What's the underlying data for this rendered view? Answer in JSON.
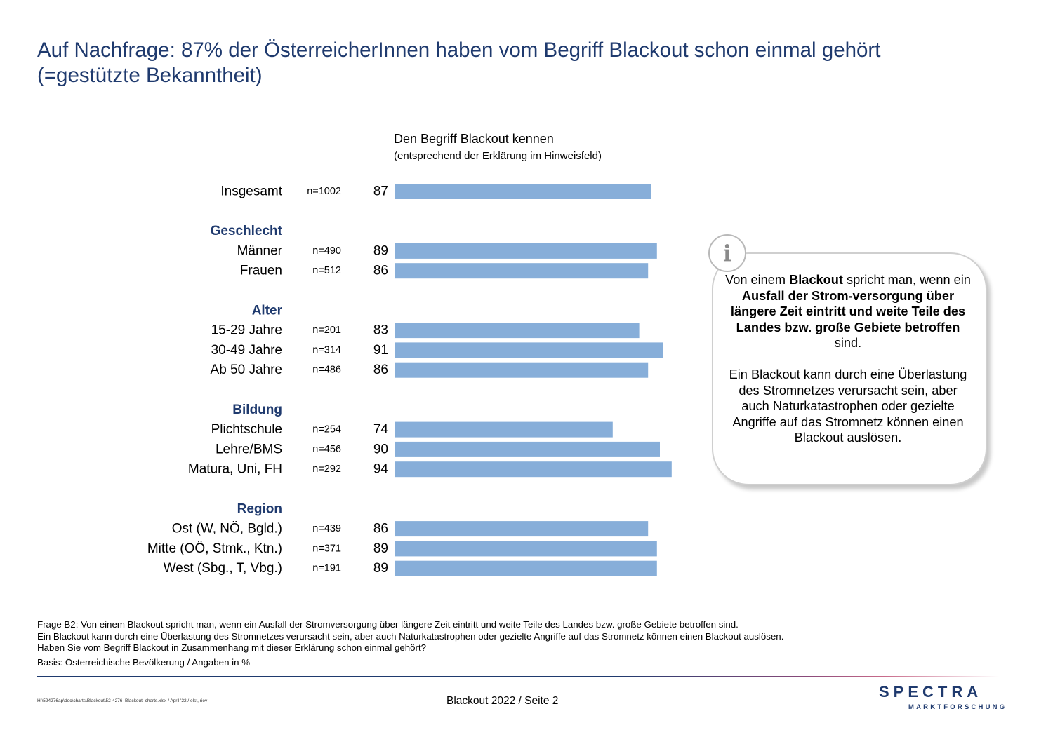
{
  "title": {
    "line1": "Auf Nachfrage: 87% der ÖsterreicherInnen haben vom Begriff Blackout schon einmal gehört",
    "line2": "(=gestützte Bekanntheit)"
  },
  "chart_data": {
    "type": "bar",
    "orientation": "horizontal",
    "title": "Den Begriff Blackout kennen",
    "subtitle": "(entsprechend der Erklärung im Hinweisfeld)",
    "xlim": [
      0,
      100
    ],
    "grid": false,
    "bar_color": "#87aed9",
    "rows": [
      {
        "kind": "bar",
        "label": "Insgesamt",
        "n": "n=1002",
        "value": 87
      },
      {
        "kind": "gap"
      },
      {
        "kind": "header",
        "label": "Geschlecht"
      },
      {
        "kind": "bar",
        "label": "Männer",
        "n": "n=490",
        "value": 89
      },
      {
        "kind": "bar",
        "label": "Frauen",
        "n": "n=512",
        "value": 86
      },
      {
        "kind": "gap"
      },
      {
        "kind": "header",
        "label": "Alter"
      },
      {
        "kind": "bar",
        "label": "15-29 Jahre",
        "n": "n=201",
        "value": 83
      },
      {
        "kind": "bar",
        "label": "30-49 Jahre",
        "n": "n=314",
        "value": 91
      },
      {
        "kind": "bar",
        "label": "Ab 50 Jahre",
        "n": "n=486",
        "value": 86
      },
      {
        "kind": "gap"
      },
      {
        "kind": "header",
        "label": "Bildung"
      },
      {
        "kind": "bar",
        "label": "Plichtschule",
        "n": "n=254",
        "value": 74
      },
      {
        "kind": "bar",
        "label": "Lehre/BMS",
        "n": "n=456",
        "value": 90
      },
      {
        "kind": "bar",
        "label": "Matura, Uni, FH",
        "n": "n=292",
        "value": 94
      },
      {
        "kind": "gap"
      },
      {
        "kind": "header",
        "label": "Region"
      },
      {
        "kind": "bar",
        "label": "Ost (W, NÖ, Bgld.)",
        "n": "n=439",
        "value": 86
      },
      {
        "kind": "bar",
        "label": "Mitte (OÖ, Stmk., Ktn.)",
        "n": "n=371",
        "value": 89
      },
      {
        "kind": "bar",
        "label": "West (Sbg., T, Vbg.)",
        "n": "n=191",
        "value": 89
      }
    ]
  },
  "info": {
    "icon": "info-icon",
    "p1": [
      {
        "t": "Von einem "
      },
      {
        "t": "Blackout",
        "b": true
      },
      {
        "t": " spricht man, wenn ein "
      },
      {
        "t": "Ausfall der Strom-versorgung über längere Zeit eintritt und weite Teile des Landes bzw. große Gebiete betroffen",
        "b": true
      },
      {
        "t": " sind."
      }
    ],
    "p2": "Ein Blackout kann durch eine Überlastung des Stromnetzes verursacht sein, aber auch Naturkatastrophen oder gezielte Angriffe auf das Stromnetz können einen Blackout auslösen."
  },
  "footnote": {
    "line1": "Frage B2: Von einem Blackout spricht man, wenn ein Ausfall der Stromversorgung über längere Zeit eintritt und weite Teile des Landes bzw. große Gebiete betroffen sind.",
    "line2": "Ein Blackout kann durch eine Überlastung des Stromnetzes verursacht sein, aber auch Naturkatastrophen oder gezielte Angriffe auf das Stromnetz können einen Blackout auslösen.",
    "line3": "Haben Sie vom Begriff Blackout in Zusammenhang mit dieser Erklärung schon einmal gehört?",
    "basis": "Basis: Österreichische Bevölkerung / Angaben in %"
  },
  "footer": {
    "path": "H:\\524276ap\\doc\\charts\\Blackout\\52-4276_Blackout_charts.xlsx / April '22 / elst, riev",
    "page": "Blackout 2022  /  Seite  2",
    "logo_word": "SPECTRA",
    "logo_sub": "MARKTFORSCHUNG"
  },
  "colors": {
    "title": "#1f3a6e",
    "header": "#1f3a6e",
    "bar": "#87aed9"
  }
}
